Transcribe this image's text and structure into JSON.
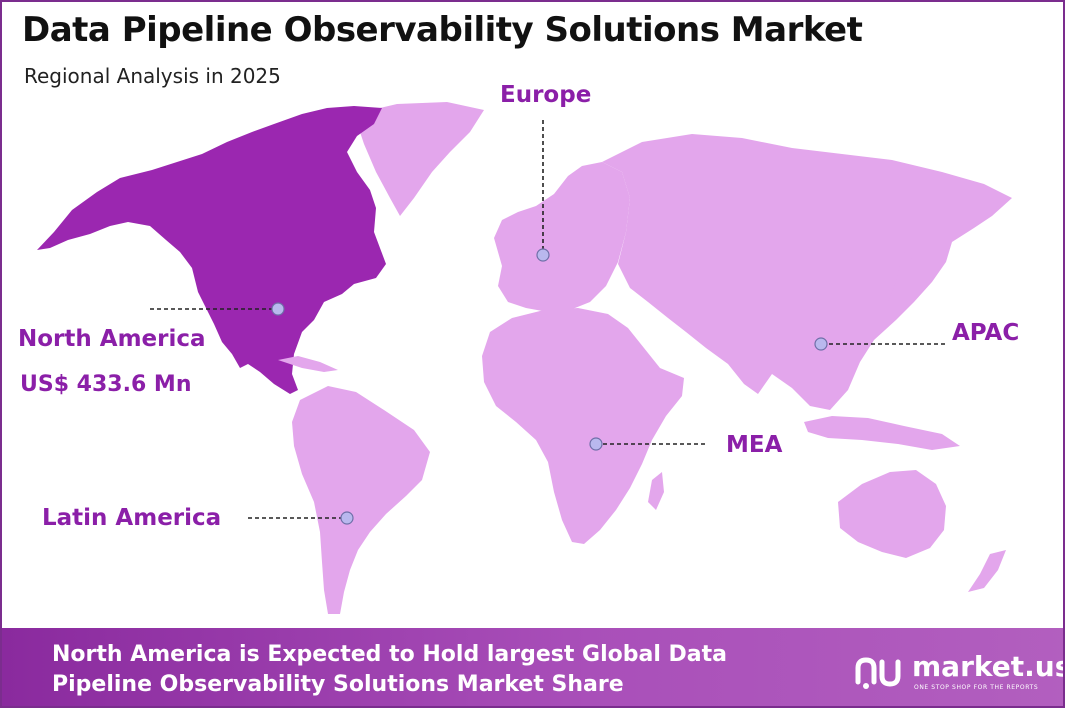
{
  "header": {
    "title": "Data Pipeline Observability Solutions Market",
    "subtitle": "Regional Analysis in 2025"
  },
  "regions": {
    "europe": {
      "label": "Europe"
    },
    "north_america": {
      "label": "North America",
      "value": "US$ 433.6 Mn",
      "highlighted": true
    },
    "apac": {
      "label": "APAC"
    },
    "mea": {
      "label": "MEA"
    },
    "latin_america": {
      "label": "Latin America"
    }
  },
  "footer": {
    "text": "North America is Expected to Hold largest Global Data Pipeline Observability Solutions Market Share",
    "brand": "market.us",
    "tagline": "ONE STOP SHOP FOR THE REPORTS"
  },
  "colors": {
    "highlight": "#9b27b0",
    "land": "#e3a6ec",
    "label": "#8b1fa8",
    "footer": "#9a3aae"
  },
  "icons": [
    "marker-dot-icon",
    "market-us-logo-icon"
  ]
}
